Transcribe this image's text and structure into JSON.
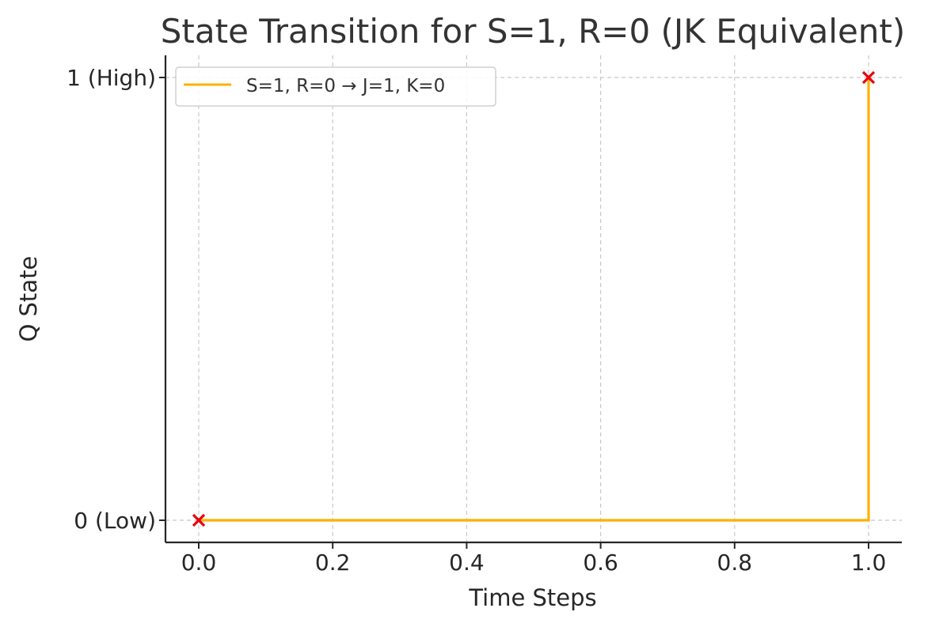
{
  "chart_data": {
    "type": "line",
    "step": "post",
    "title": "State Transition for S=1, R=0 (JK Equivalent)",
    "xlabel": "Time Steps",
    "ylabel": "Q State",
    "xlim": [
      -0.05,
      1.05
    ],
    "ylim": [
      -0.05,
      1.05
    ],
    "grid": true,
    "legend_position": "top-left",
    "xticks": [
      {
        "value": 0.0,
        "label": "0.0"
      },
      {
        "value": 0.2,
        "label": "0.2"
      },
      {
        "value": 0.4,
        "label": "0.4"
      },
      {
        "value": 0.6,
        "label": "0.6"
      },
      {
        "value": 0.8,
        "label": "0.8"
      },
      {
        "value": 1.0,
        "label": "1.0"
      }
    ],
    "yticks": [
      {
        "value": 0,
        "label": "0 (Low)"
      },
      {
        "value": 1,
        "label": "1 (High)"
      }
    ],
    "series": [
      {
        "name": "S=1, R=0 → J=1, K=0",
        "color": "#FFB000",
        "marker": "x",
        "marker_color": "#E8000B",
        "x": [
          0,
          1
        ],
        "y": [
          0,
          1
        ]
      }
    ]
  }
}
